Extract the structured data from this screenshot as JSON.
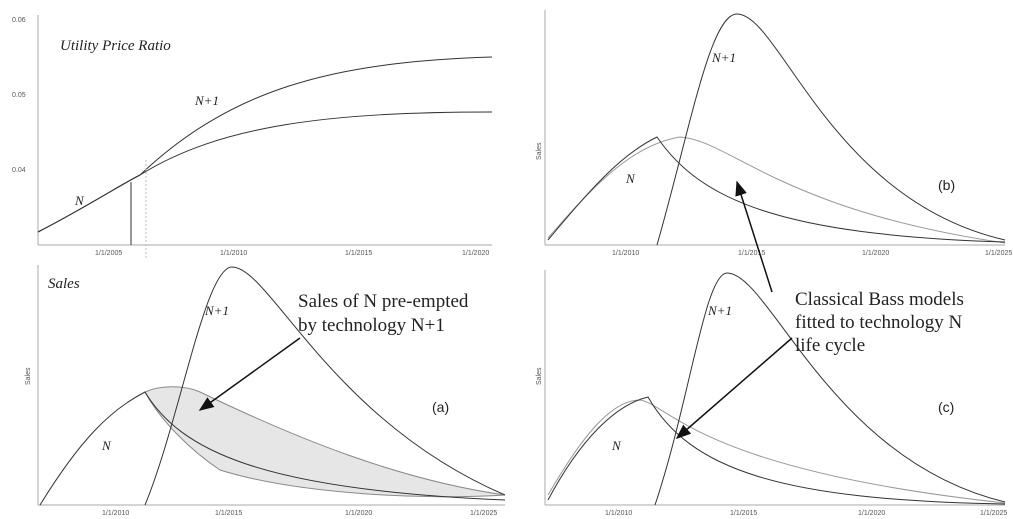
{
  "panels": [
    {
      "title": "Utility Price Ratio",
      "yticks": [
        "0.06",
        "0.05",
        "0.04"
      ],
      "xticks": [
        "1/1/2005",
        "1/1/2010",
        "1/1/2015",
        "1/1/2020"
      ],
      "curve_labels": [
        "N+1",
        "N"
      ]
    },
    {
      "title": "Sales",
      "axis_label": "Sales",
      "tag": "(a)",
      "xticks": [
        "1/1/2010",
        "1/1/2015",
        "1/1/2020",
        "1/1/2025"
      ],
      "curve_labels": [
        "N+1",
        "N"
      ]
    },
    {
      "axis_label": "Sales",
      "tag": "(b)",
      "xticks": [
        "1/1/2010",
        "1/1/2015",
        "1/1/2020",
        "1/1/2025"
      ],
      "curve_labels": [
        "N+1",
        "N"
      ]
    },
    {
      "axis_label": "Sales",
      "tag": "(c)",
      "xticks": [
        "1/1/2010",
        "1/1/2015",
        "1/1/2020",
        "1/1/2025"
      ],
      "curve_labels": [
        "N+1",
        "N"
      ]
    }
  ],
  "annotations": [
    {
      "lines": [
        "Sales of N pre-empted",
        "by technology N+1"
      ]
    },
    {
      "lines": [
        "Classical Bass models",
        "fitted to technology N",
        "life cycle"
      ]
    }
  ]
}
